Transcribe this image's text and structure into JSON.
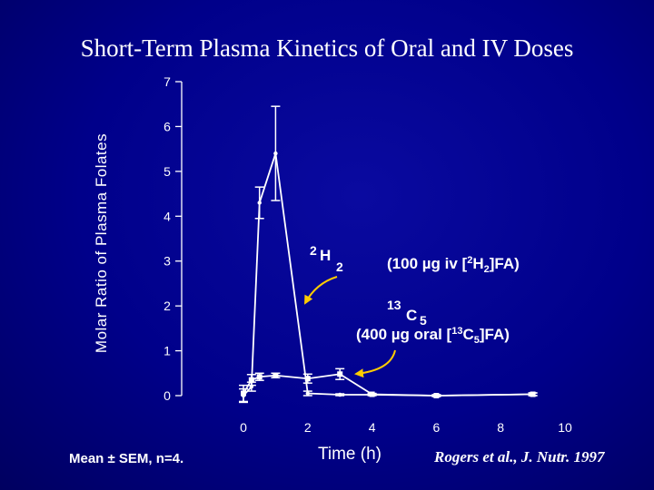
{
  "slide": {
    "title": "Short-Term Plasma Kinetics of Oral and IV Doses",
    "footnote_left": "Mean ± SEM, n=4.",
    "citation": "Rogers et al., J. Nutr. 1997"
  },
  "colors": {
    "background": "#00008a",
    "foreground": "#ffffff",
    "arrow": "#ffcc00"
  },
  "chart_data": {
    "type": "line",
    "title": "Short-Term Plasma Kinetics of Oral and IV Doses",
    "xlabel": "Time (h)",
    "ylabel": "Molar Ratio of Plasma Folates",
    "xlim": [
      0,
      10
    ],
    "ylim": [
      0,
      7
    ],
    "xticks": [
      0,
      2,
      4,
      6,
      8,
      10
    ],
    "yticks": [
      0,
      1,
      2,
      3,
      4,
      5,
      6,
      7
    ],
    "grid": false,
    "series": [
      {
        "x": [
          0,
          0.25,
          0.5,
          1,
          2,
          3,
          4,
          6,
          9
        ],
        "y": [
          0,
          0.2,
          4.3,
          5.4,
          0.05,
          0.02,
          0.02,
          0,
          0.03
        ],
        "err": [
          0.15,
          0.1,
          0.35,
          1.05,
          0.05,
          0.02,
          0.02,
          0.02,
          0.03
        ]
      },
      {
        "x": [
          0,
          0.25,
          0.5,
          1,
          2,
          3,
          4,
          6,
          9
        ],
        "y": [
          0.05,
          0.35,
          0.42,
          0.45,
          0.38,
          0.48,
          0.03,
          0,
          0.03
        ],
        "err": [
          0.18,
          0.12,
          0.08,
          0.05,
          0.1,
          0.12,
          0.02,
          0.02,
          0.03
        ]
      }
    ],
    "annotations": {
      "iv_label_main": "2",
      "iv_label_sub": "H",
      "iv_label_sub2": "2",
      "iv_desc_a": "(100 µg iv [",
      "iv_desc_b": "2",
      "iv_desc_c": "H",
      "iv_desc_d": "2",
      "iv_desc_e": "]FA)",
      "oral_label_main": "13",
      "oral_label_sub": "C",
      "oral_label_sub2": "5",
      "oral_desc_a": "(400 µg oral [",
      "oral_desc_b": "13",
      "oral_desc_c": "C",
      "oral_desc_d": "5",
      "oral_desc_e": "]FA)"
    }
  }
}
